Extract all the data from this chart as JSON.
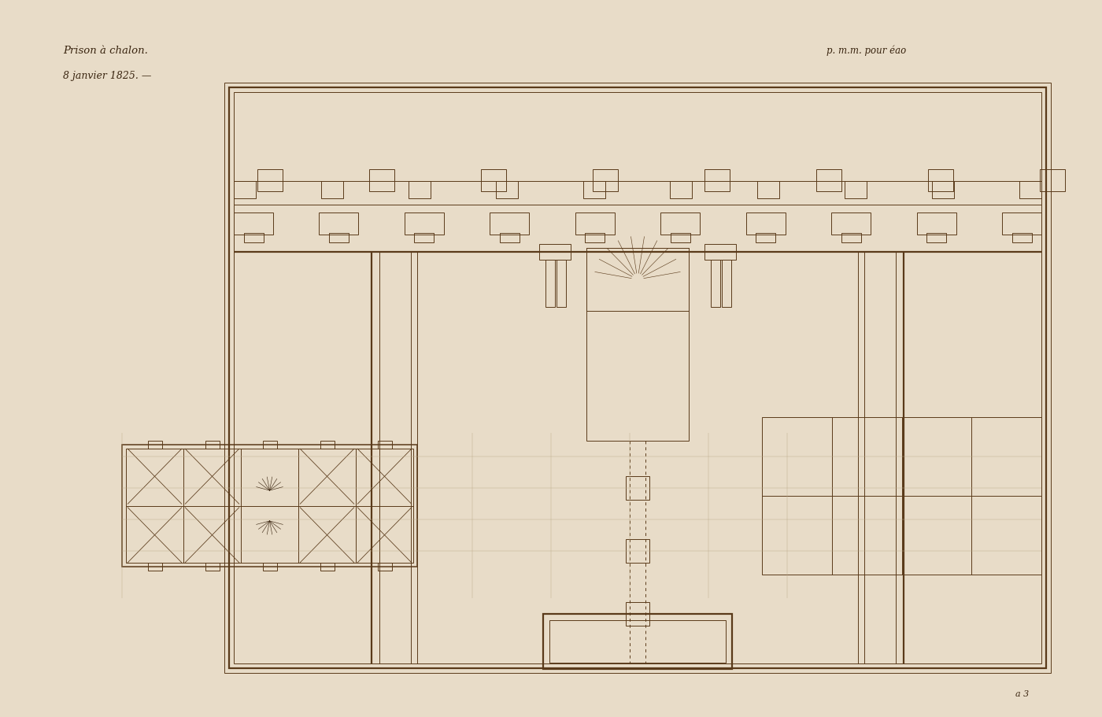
{
  "bg_color": "#e8dcc8",
  "line_color": "#5a3a1a",
  "line_color_faint": "#b8a888",
  "title_text": "Prison à chalon.",
  "subtitle_text": "8 janvier 1825. —",
  "top_right_text": "p. m.m. pour éao",
  "bottom_right_text": "a 3",
  "fig_width": 14.0,
  "fig_height": 9.11,
  "lw_main": 1.6,
  "lw_thin": 0.7,
  "lw_med": 1.1
}
